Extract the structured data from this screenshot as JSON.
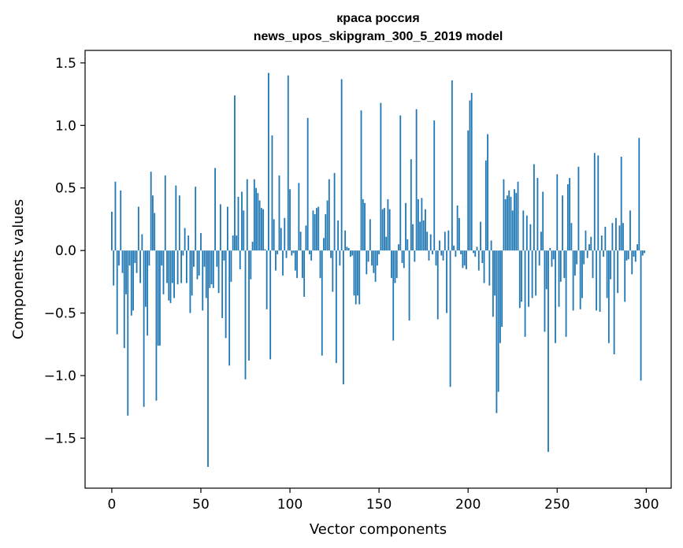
{
  "chart_data": {
    "type": "bar",
    "title": [
      "краса россия",
      "news_upos_skipgram_300_5_2019 model"
    ],
    "xlabel": "Vector components",
    "ylabel": "Components values",
    "xlim": [
      -15,
      314
    ],
    "ylim": [
      -1.9,
      1.6
    ],
    "xticks": [
      0,
      50,
      100,
      150,
      200,
      250,
      300
    ],
    "xtick_labels": [
      "0",
      "50",
      "100",
      "150",
      "200",
      "250",
      "300"
    ],
    "yticks": [
      1.5,
      1.0,
      0.5,
      0.0,
      -0.5,
      -1.0,
      -1.5
    ],
    "ytick_labels": [
      "1.5",
      "1.0",
      "0.5",
      "0.0",
      "−0.5",
      "−1.0",
      "−1.5"
    ],
    "bar_color": "#1f77b4",
    "values": [
      0.31,
      -0.28,
      0.55,
      -0.67,
      -0.12,
      0.48,
      -0.18,
      -0.78,
      -0.35,
      -1.32,
      -0.12,
      -0.52,
      -0.48,
      -0.1,
      -0.18,
      0.35,
      -0.26,
      0.13,
      -1.25,
      -0.45,
      -0.68,
      -0.12,
      0.63,
      0.44,
      0.3,
      -1.2,
      -0.76,
      -0.76,
      -0.12,
      -0.35,
      0.6,
      -0.26,
      -0.4,
      -0.42,
      -0.26,
      -0.38,
      0.52,
      -0.27,
      0.44,
      -0.26,
      -0.04,
      0.18,
      -0.26,
      0.12,
      -0.5,
      -0.36,
      -0.13,
      0.51,
      -0.23,
      -0.2,
      0.14,
      -0.48,
      -0.13,
      -0.38,
      -1.73,
      -0.3,
      -0.27,
      -0.3,
      0.66,
      -0.13,
      -0.34,
      0.37,
      -0.54,
      -0.08,
      -0.7,
      0.35,
      -0.92,
      -0.25,
      0.12,
      1.24,
      0.12,
      0.43,
      -0.15,
      0.47,
      0.32,
      -1.03,
      0.57,
      -0.88,
      -0.23,
      0.07,
      0.57,
      0.5,
      0.46,
      0.4,
      0.34,
      0.33,
      0.01,
      -0.47,
      1.42,
      -0.87,
      0.92,
      0.25,
      -0.16,
      -0.03,
      0.6,
      0.18,
      -0.2,
      0.26,
      -0.06,
      1.4,
      0.49,
      -0.04,
      -0.02,
      -0.16,
      -0.22,
      0.54,
      0.15,
      -0.22,
      -0.37,
      0.2,
      1.06,
      -0.03,
      -0.08,
      0.32,
      0.29,
      0.34,
      0.35,
      -0.22,
      -0.84,
      0.1,
      0.29,
      0.4,
      0.57,
      -0.06,
      -0.33,
      0.62,
      -0.9,
      0.24,
      -0.12,
      1.37,
      -1.07,
      0.16,
      0.03,
      0.02,
      -0.05,
      -0.04,
      -0.36,
      -0.43,
      -0.36,
      -0.43,
      1.12,
      0.41,
      0.38,
      -0.19,
      -0.09,
      0.25,
      -0.12,
      -0.18,
      -0.25,
      -0.12,
      -0.03,
      1.18,
      0.33,
      0.34,
      0.11,
      0.41,
      0.33,
      -0.22,
      -0.72,
      -0.26,
      -0.22,
      0.05,
      1.08,
      -0.1,
      -0.14,
      0.38,
      0.09,
      -0.56,
      0.73,
      0.21,
      -0.09,
      1.13,
      0.41,
      0.23,
      0.42,
      0.24,
      0.33,
      0.15,
      -0.08,
      0.13,
      -0.03,
      1.04,
      -0.12,
      -0.55,
      0.08,
      -0.04,
      -0.08,
      0.15,
      -0.5,
      0.16,
      -1.09,
      1.36,
      0.04,
      -0.05,
      0.36,
      0.26,
      -0.03,
      -0.14,
      -0.12,
      -0.15,
      0.96,
      1.2,
      1.26,
      -0.02,
      -0.05,
      0.03,
      -0.16,
      0.23,
      -0.1,
      -0.26,
      0.72,
      0.93,
      -0.28,
      0.08,
      -0.53,
      -0.36,
      -1.3,
      -1.13,
      -0.74,
      -0.61,
      0.57,
      0.41,
      0.44,
      0.48,
      0.43,
      0.32,
      0.49,
      0.46,
      0.55,
      -0.46,
      -0.41,
      0.32,
      -0.69,
      0.28,
      -0.45,
      0.21,
      -0.38,
      0.69,
      -0.36,
      0.58,
      -0.12,
      0.15,
      0.47,
      -0.65,
      -0.31,
      -1.61,
      0.02,
      -0.13,
      -0.07,
      -0.74,
      0.61,
      -0.45,
      -0.25,
      0.44,
      -0.22,
      -0.69,
      0.53,
      0.58,
      0.22,
      -0.48,
      -0.2,
      -0.11,
      0.67,
      -0.47,
      -0.38,
      -0.11,
      0.16,
      -0.06,
      0.05,
      0.11,
      -0.22,
      0.78,
      -0.48,
      0.76,
      -0.49,
      0.12,
      -0.05,
      0.19,
      -0.38,
      -0.74,
      -0.23,
      0.22,
      -0.83,
      0.26,
      -0.34,
      0.2,
      0.75,
      0.22,
      -0.41,
      -0.08,
      -0.07,
      0.32,
      -0.19,
      -0.05,
      -0.09,
      0.05,
      0.9,
      -1.04,
      -0.04,
      -0.02
    ]
  }
}
